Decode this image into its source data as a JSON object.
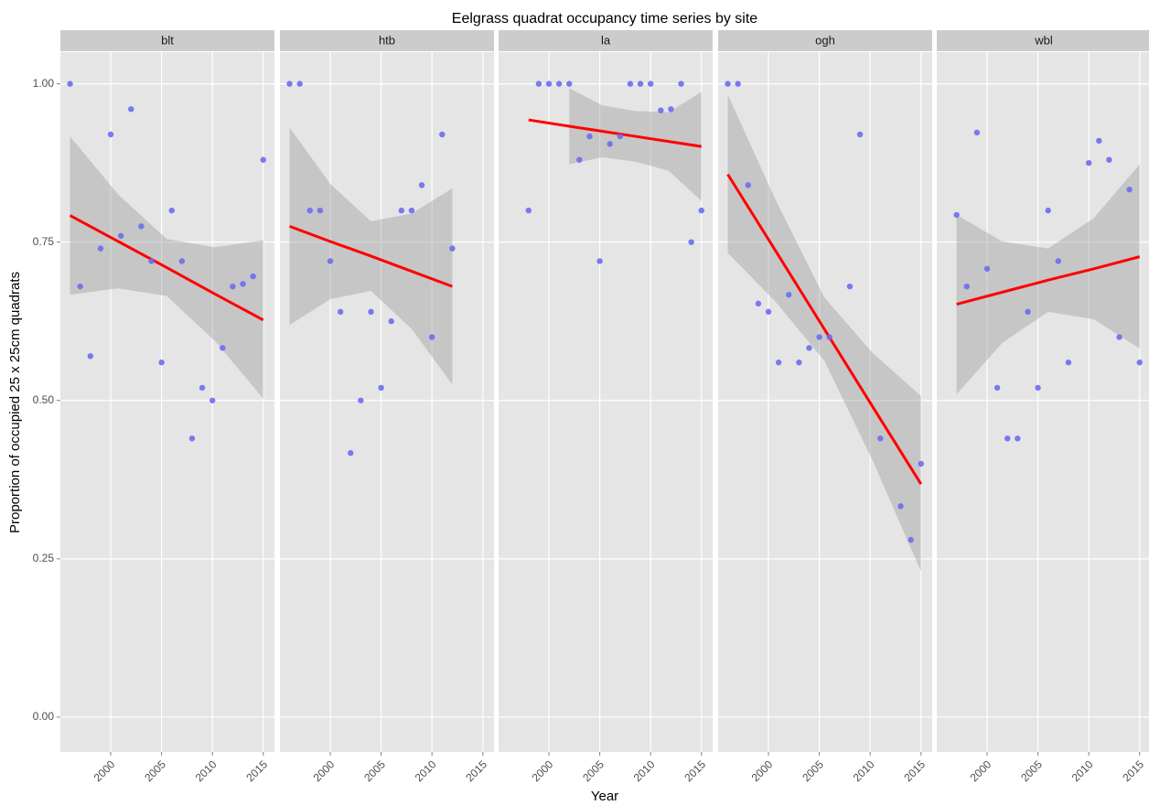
{
  "chart_data": {
    "type": "scatter",
    "title": "Eelgrass quadrat occupancy time series by site",
    "xlabel": "Year",
    "ylabel": "Proportion of occupied 25 x 25cm quadrats",
    "xlim": [
      1995.05,
      2016.1
    ],
    "xticks": [
      2000,
      2005,
      2010,
      2015
    ],
    "ylim": [
      -0.055,
      1.05
    ],
    "yticks": [
      {
        "value": 0,
        "label": "0.00"
      },
      {
        "value": 0.25,
        "label": "0.25"
      },
      {
        "value": 0.5,
        "label": "0.50"
      },
      {
        "value": 0.75,
        "label": "0.75"
      },
      {
        "value": 1,
        "label": "1.00"
      }
    ],
    "grid": true,
    "color": "#6b6bf0",
    "fit_color": "#ff0000",
    "ribbon_color": "#999999",
    "panels": [
      {
        "name": "blt",
        "x": [
          1996,
          1997,
          1998,
          1999,
          2000,
          2001,
          2002,
          2003,
          2004,
          2005,
          2006,
          2007,
          2008,
          2009,
          2010,
          2011,
          2012,
          2013,
          2014,
          2015
        ],
        "values": [
          1.0,
          0.68,
          0.57,
          0.74,
          0.92,
          0.76,
          0.96,
          0.775,
          0.72,
          0.56,
          0.8,
          0.72,
          0.44,
          0.52,
          0.5,
          0.583,
          0.68,
          0.684,
          0.696,
          0.88
        ],
        "fit_x": [
          1996,
          2000.75,
          2005.5,
          2010.25,
          2015
        ],
        "fit": [
          0.792,
          0.751,
          0.71,
          0.668,
          0.627
        ],
        "fit_lower": [
          0.667,
          0.677,
          0.665,
          0.594,
          0.503
        ],
        "fit_upper": [
          0.917,
          0.825,
          0.755,
          0.742,
          0.753
        ]
      },
      {
        "name": "htb",
        "x": [
          1996,
          1997,
          1998,
          1999,
          2000,
          2001,
          2002,
          2003,
          2004,
          2005,
          2006,
          2007,
          2008,
          2009,
          2010,
          2011,
          2012
        ],
        "values": [
          1.0,
          1.0,
          0.8,
          0.8,
          0.72,
          0.64,
          0.417,
          0.5,
          0.64,
          0.52,
          0.625,
          0.8,
          0.8,
          0.84,
          0.6,
          0.92,
          0.74
        ],
        "fit_x": [
          1996,
          2000,
          2004,
          2008,
          2012
        ],
        "fit": [
          0.775,
          0.751,
          0.728,
          0.704,
          0.68
        ],
        "fit_lower": [
          0.619,
          0.66,
          0.673,
          0.613,
          0.525
        ],
        "fit_upper": [
          0.931,
          0.842,
          0.783,
          0.795,
          0.835
        ]
      },
      {
        "name": "la",
        "x": [
          1998,
          1999,
          2000,
          2001,
          2002,
          2003,
          2004,
          2005,
          2006,
          2007,
          2008,
          2009,
          2010,
          2011,
          2012,
          2013,
          2014,
          2015
        ],
        "values": [
          0.8,
          1.0,
          1.0,
          1.0,
          1.0,
          0.88,
          0.917,
          0.72,
          0.905,
          0.917,
          1.0,
          1.0,
          1.0,
          0.958,
          0.96,
          1.0,
          0.75,
          0.8
        ],
        "fit_x": [
          1998,
          2002,
          2005.25,
          2008.5,
          2011.75,
          2015
        ],
        "fit": [
          0.943,
          0.933,
          0.925,
          0.917,
          0.909,
          0.901
        ],
        "fit_lower": [
          null,
          0.873,
          0.884,
          0.877,
          0.863,
          0.815
        ],
        "fit_upper": [
          null,
          0.993,
          0.966,
          0.957,
          0.955,
          0.987
        ]
      },
      {
        "name": "ogh",
        "x": [
          1996,
          1997,
          1998,
          1999,
          2000,
          2001,
          2002,
          2003,
          2004,
          2005,
          2006,
          2008,
          2009,
          2011,
          2013,
          2014,
          2015
        ],
        "values": [
          1.0,
          1.0,
          0.84,
          0.653,
          0.64,
          0.56,
          0.667,
          0.56,
          0.583,
          0.6,
          0.6,
          0.68,
          0.92,
          0.44,
          0.333,
          0.28,
          0.4
        ],
        "fit_x": [
          1996,
          2000.75,
          2005.5,
          2010.25,
          2015
        ],
        "fit": [
          0.857,
          0.735,
          0.6125,
          0.49,
          0.368
        ],
        "fit_lower": [
          0.733,
          0.655,
          0.5625,
          0.405,
          0.23
        ],
        "fit_upper": [
          0.983,
          0.815,
          0.6625,
          0.575,
          0.507
        ]
      },
      {
        "name": "wbl",
        "x": [
          1997,
          1998,
          1999,
          2000,
          2001,
          2002,
          2003,
          2004,
          2005,
          2006,
          2007,
          2008,
          2010,
          2011,
          2012,
          2013,
          2014,
          2015
        ],
        "values": [
          0.793,
          0.68,
          0.923,
          0.708,
          0.52,
          0.44,
          0.44,
          0.64,
          0.52,
          0.8,
          0.72,
          0.56,
          0.875,
          0.91,
          0.88,
          0.6,
          0.833,
          0.56
        ],
        "fit_x": [
          1997,
          2001.5,
          2006,
          2010.5,
          2015
        ],
        "fit": [
          0.652,
          0.671,
          0.69,
          0.708,
          0.727
        ],
        "fit_lower": [
          0.51,
          0.591,
          0.64,
          0.628,
          0.582
        ],
        "fit_upper": [
          0.793,
          0.751,
          0.74,
          0.788,
          0.873
        ]
      }
    ]
  }
}
